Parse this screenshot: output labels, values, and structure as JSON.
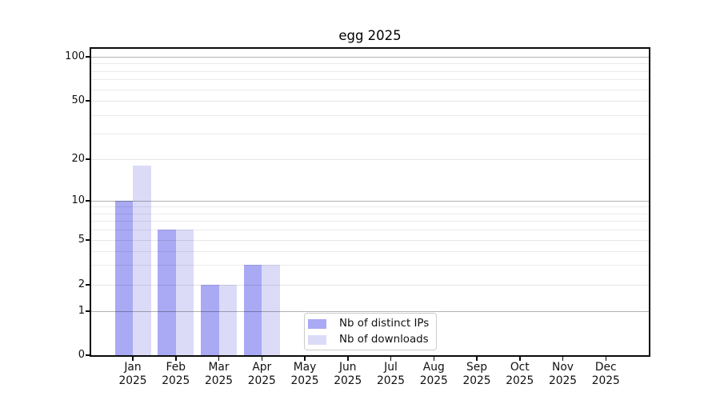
{
  "chart_data": {
    "type": "bar",
    "title": "egg 2025",
    "year": "2025",
    "months": [
      "Jan",
      "Feb",
      "Mar",
      "Apr",
      "May",
      "Jun",
      "Jul",
      "Aug",
      "Sep",
      "Oct",
      "Nov",
      "Dec"
    ],
    "categories": [
      "Jan 2025",
      "Feb 2025",
      "Mar 2025",
      "Apr 2025",
      "May 2025",
      "Jun 2025",
      "Jul 2025",
      "Aug 2025",
      "Sep 2025",
      "Oct 2025",
      "Nov 2025",
      "Dec 2025"
    ],
    "series": [
      {
        "name": "Nb of distinct IPs",
        "color": "#a9a9f4",
        "values": [
          10,
          6,
          2,
          3,
          0,
          0,
          0,
          0,
          0,
          0,
          0,
          0
        ]
      },
      {
        "name": "Nb of downloads",
        "color": "#dbdbf8",
        "values": [
          18,
          6,
          2,
          3,
          0,
          0,
          0,
          0,
          0,
          0,
          0,
          0
        ]
      }
    ],
    "y_axis": {
      "scale": "log-like (0,1,2,5,10,20,50,100)",
      "range": [
        0,
        115
      ],
      "ticks": [
        {
          "value": 0,
          "label": "0"
        },
        {
          "value": 1,
          "label": "1"
        },
        {
          "value": 2,
          "label": "2"
        },
        {
          "value": 5,
          "label": "5"
        },
        {
          "value": 10,
          "label": "10"
        },
        {
          "value": 20,
          "label": "20"
        },
        {
          "value": 50,
          "label": "50"
        },
        {
          "value": 100,
          "label": "100"
        }
      ]
    },
    "xlabel": "",
    "ylabel": "",
    "grid": "on (log minor gridlines, darker lines at 1/10/100)",
    "legend_position": "inside lower center",
    "background_color": "#ffffff",
    "axis_color": "#0a0a0a"
  }
}
